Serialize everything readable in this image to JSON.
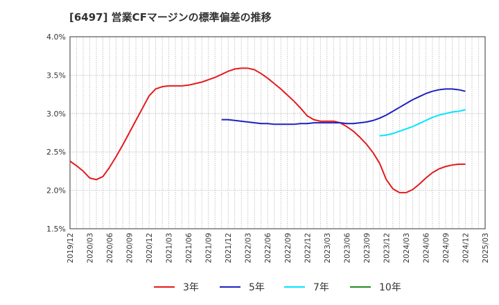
{
  "title": "[6497]  営業CFマージンの標準偏差の推移",
  "chart_data": {
    "type": "line",
    "title": "[6497]  営業CFマージンの標準偏差の推移",
    "xlabel": "",
    "ylabel": "",
    "ylim": [
      1.5,
      4.0
    ],
    "yticks": [
      "1.5%",
      "2.0%",
      "2.5%",
      "3.0%",
      "3.5%",
      "4.0%"
    ],
    "xticks": [
      "2019/12",
      "2020/03",
      "2020/06",
      "2020/09",
      "2020/12",
      "2021/03",
      "2021/06",
      "2021/09",
      "2021/12",
      "2022/03",
      "2022/06",
      "2022/09",
      "2022/12",
      "2023/03",
      "2023/06",
      "2023/09",
      "2023/12",
      "2024/03",
      "2024/06",
      "2024/09",
      "2024/12",
      "2025/03"
    ],
    "grid": true,
    "legend_position": "bottom",
    "series": [
      {
        "name": "3年",
        "color": "#e31a1c",
        "points": [
          [
            "2019/12",
            2.38
          ],
          [
            "2020/01",
            2.32
          ],
          [
            "2020/02",
            2.25
          ],
          [
            "2020/03",
            2.16
          ],
          [
            "2020/04",
            2.14
          ],
          [
            "2020/05",
            2.18
          ],
          [
            "2020/06",
            2.3
          ],
          [
            "2020/07",
            2.44
          ],
          [
            "2020/08",
            2.59
          ],
          [
            "2020/09",
            2.75
          ],
          [
            "2020/10",
            2.91
          ],
          [
            "2020/11",
            3.07
          ],
          [
            "2020/12",
            3.23
          ],
          [
            "2021/01",
            3.32
          ],
          [
            "2021/02",
            3.35
          ],
          [
            "2021/03",
            3.36
          ],
          [
            "2021/04",
            3.36
          ],
          [
            "2021/05",
            3.36
          ],
          [
            "2021/06",
            3.37
          ],
          [
            "2021/07",
            3.39
          ],
          [
            "2021/08",
            3.41
          ],
          [
            "2021/09",
            3.44
          ],
          [
            "2021/10",
            3.47
          ],
          [
            "2021/11",
            3.51
          ],
          [
            "2021/12",
            3.55
          ],
          [
            "2022/01",
            3.58
          ],
          [
            "2022/02",
            3.59
          ],
          [
            "2022/03",
            3.59
          ],
          [
            "2022/04",
            3.57
          ],
          [
            "2022/05",
            3.52
          ],
          [
            "2022/06",
            3.46
          ],
          [
            "2022/07",
            3.39
          ],
          [
            "2022/08",
            3.32
          ],
          [
            "2022/09",
            3.24
          ],
          [
            "2022/10",
            3.16
          ],
          [
            "2022/11",
            3.07
          ],
          [
            "2022/12",
            2.97
          ],
          [
            "2023/01",
            2.92
          ],
          [
            "2023/02",
            2.9
          ],
          [
            "2023/03",
            2.9
          ],
          [
            "2023/04",
            2.9
          ],
          [
            "2023/05",
            2.88
          ],
          [
            "2023/06",
            2.83
          ],
          [
            "2023/07",
            2.77
          ],
          [
            "2023/08",
            2.69
          ],
          [
            "2023/09",
            2.6
          ],
          [
            "2023/10",
            2.49
          ],
          [
            "2023/11",
            2.35
          ],
          [
            "2023/12",
            2.14
          ],
          [
            "2024/01",
            2.02
          ],
          [
            "2024/02",
            1.97
          ],
          [
            "2024/03",
            1.97
          ],
          [
            "2024/04",
            2.01
          ],
          [
            "2024/05",
            2.08
          ],
          [
            "2024/06",
            2.16
          ],
          [
            "2024/07",
            2.23
          ],
          [
            "2024/08",
            2.28
          ],
          [
            "2024/09",
            2.31
          ],
          [
            "2024/10",
            2.33
          ],
          [
            "2024/11",
            2.34
          ],
          [
            "2024/12",
            2.34
          ]
        ]
      },
      {
        "name": "5年",
        "color": "#1f1fbf",
        "points": [
          [
            "2021/11",
            2.92
          ],
          [
            "2021/12",
            2.92
          ],
          [
            "2022/01",
            2.91
          ],
          [
            "2022/02",
            2.9
          ],
          [
            "2022/03",
            2.89
          ],
          [
            "2022/04",
            2.88
          ],
          [
            "2022/05",
            2.87
          ],
          [
            "2022/06",
            2.87
          ],
          [
            "2022/07",
            2.86
          ],
          [
            "2022/08",
            2.86
          ],
          [
            "2022/09",
            2.86
          ],
          [
            "2022/10",
            2.86
          ],
          [
            "2022/11",
            2.87
          ],
          [
            "2022/12",
            2.87
          ],
          [
            "2023/01",
            2.88
          ],
          [
            "2023/02",
            2.88
          ],
          [
            "2023/03",
            2.88
          ],
          [
            "2023/04",
            2.88
          ],
          [
            "2023/05",
            2.88
          ],
          [
            "2023/06",
            2.87
          ],
          [
            "2023/07",
            2.87
          ],
          [
            "2023/08",
            2.88
          ],
          [
            "2023/09",
            2.89
          ],
          [
            "2023/10",
            2.91
          ],
          [
            "2023/11",
            2.94
          ],
          [
            "2023/12",
            2.98
          ],
          [
            "2024/01",
            3.03
          ],
          [
            "2024/02",
            3.08
          ],
          [
            "2024/03",
            3.13
          ],
          [
            "2024/04",
            3.18
          ],
          [
            "2024/05",
            3.22
          ],
          [
            "2024/06",
            3.26
          ],
          [
            "2024/07",
            3.29
          ],
          [
            "2024/08",
            3.31
          ],
          [
            "2024/09",
            3.32
          ],
          [
            "2024/10",
            3.32
          ],
          [
            "2024/11",
            3.31
          ],
          [
            "2024/12",
            3.29
          ]
        ]
      },
      {
        "name": "7年",
        "color": "#00e5ff",
        "points": [
          [
            "2023/11",
            2.71
          ],
          [
            "2023/12",
            2.72
          ],
          [
            "2024/01",
            2.74
          ],
          [
            "2024/02",
            2.77
          ],
          [
            "2024/03",
            2.8
          ],
          [
            "2024/04",
            2.83
          ],
          [
            "2024/05",
            2.87
          ],
          [
            "2024/06",
            2.91
          ],
          [
            "2024/07",
            2.95
          ],
          [
            "2024/08",
            2.98
          ],
          [
            "2024/09",
            3.0
          ],
          [
            "2024/10",
            3.02
          ],
          [
            "2024/11",
            3.03
          ],
          [
            "2024/12",
            3.05
          ]
        ]
      },
      {
        "name": "10年",
        "color": "#228b22",
        "points": []
      }
    ]
  }
}
